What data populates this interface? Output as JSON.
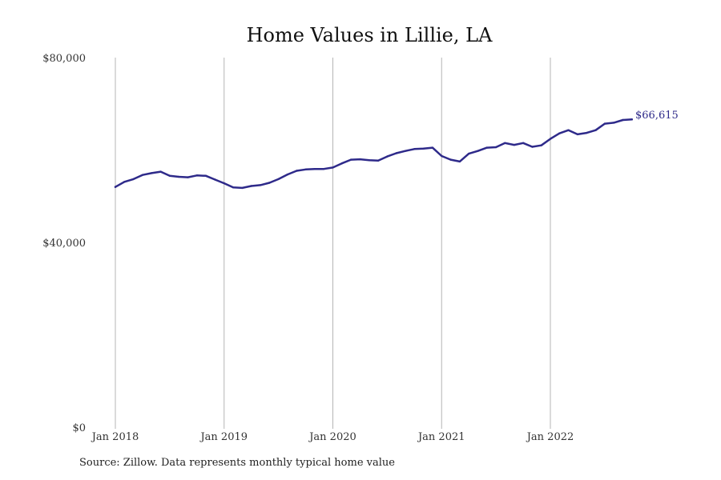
{
  "chart_data": {
    "type": "line",
    "title": "Home Values in Lillie, LA",
    "xlabel": "",
    "ylabel": "",
    "x_ticks": [
      "Jan 2018",
      "Jan 2019",
      "Jan 2020",
      "Jan 2021",
      "Jan 2022"
    ],
    "y_ticks": [
      "$0",
      "$40,000",
      "$80,000"
    ],
    "y_tick_values": [
      0,
      40000,
      80000
    ],
    "ylim": [
      0,
      80000
    ],
    "grid": "vertical at x ticks",
    "series": [
      {
        "color": "#2e2a8a",
        "end_label": "$66,615",
        "points": [
          [
            "2018-01",
            52000
          ],
          [
            "2018-02",
            53100
          ],
          [
            "2018-03",
            53700
          ],
          [
            "2018-04",
            54600
          ],
          [
            "2018-05",
            55000
          ],
          [
            "2018-06",
            55300
          ],
          [
            "2018-07",
            54400
          ],
          [
            "2018-08",
            54200
          ],
          [
            "2018-09",
            54100
          ],
          [
            "2018-10",
            54500
          ],
          [
            "2018-11",
            54400
          ],
          [
            "2018-12",
            53600
          ],
          [
            "2019-01",
            52800
          ],
          [
            "2019-02",
            51900
          ],
          [
            "2019-03",
            51800
          ],
          [
            "2019-04",
            52200
          ],
          [
            "2019-05",
            52400
          ],
          [
            "2019-06",
            52900
          ],
          [
            "2019-07",
            53700
          ],
          [
            "2019-08",
            54700
          ],
          [
            "2019-09",
            55500
          ],
          [
            "2019-10",
            55800
          ],
          [
            "2019-11",
            55900
          ],
          [
            "2019-12",
            55900
          ],
          [
            "2020-01",
            56200
          ],
          [
            "2020-02",
            57100
          ],
          [
            "2020-03",
            57900
          ],
          [
            "2020-04",
            58000
          ],
          [
            "2020-05",
            57800
          ],
          [
            "2020-06",
            57700
          ],
          [
            "2020-07",
            58600
          ],
          [
            "2020-08",
            59300
          ],
          [
            "2020-09",
            59800
          ],
          [
            "2020-10",
            60200
          ],
          [
            "2020-11",
            60300
          ],
          [
            "2020-12",
            60500
          ],
          [
            "2021-01",
            58700
          ],
          [
            "2021-02",
            57900
          ],
          [
            "2021-03",
            57500
          ],
          [
            "2021-04",
            59200
          ],
          [
            "2021-05",
            59800
          ],
          [
            "2021-06",
            60500
          ],
          [
            "2021-07",
            60600
          ],
          [
            "2021-08",
            61500
          ],
          [
            "2021-09",
            61100
          ],
          [
            "2021-10",
            61500
          ],
          [
            "2021-11",
            60700
          ],
          [
            "2021-12",
            61000
          ],
          [
            "2022-01",
            62400
          ],
          [
            "2022-02",
            63600
          ],
          [
            "2022-03",
            64300
          ],
          [
            "2022-04",
            63400
          ],
          [
            "2022-05",
            63700
          ],
          [
            "2022-06",
            64300
          ],
          [
            "2022-07",
            65700
          ],
          [
            "2022-08",
            65900
          ],
          [
            "2022-09",
            66500
          ],
          [
            "2022-10",
            66615
          ]
        ]
      }
    ]
  },
  "source_note": "Source: Zillow. Data represents monthly typical home value"
}
